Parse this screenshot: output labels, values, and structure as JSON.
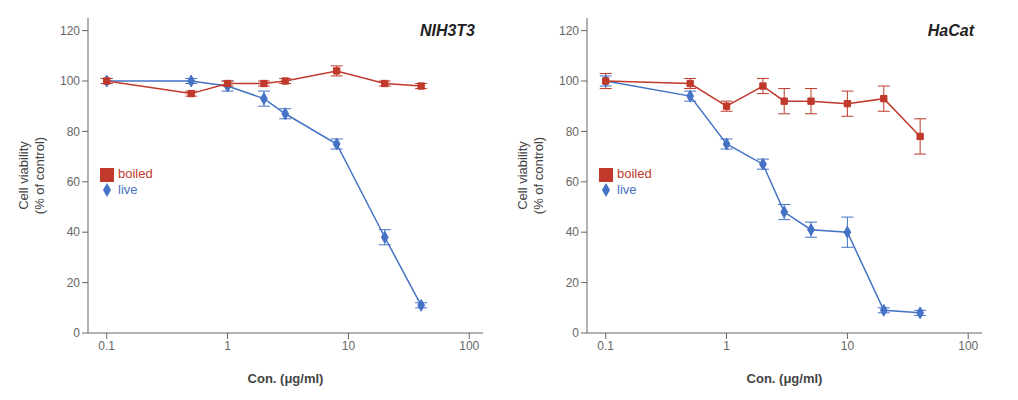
{
  "chart_data": [
    {
      "type": "line",
      "title": "NIH3T3",
      "xlabel": "Con. (μg/ml)",
      "ylabel": "Cell viability\n(% of control)",
      "log": "x",
      "x": [
        0.1,
        0.5,
        1.0,
        2.0,
        3.0,
        8.0,
        20.0,
        40.0
      ],
      "series": [
        {
          "name": "live",
          "color": "#4472C4",
          "marker": "diamond",
          "values": [
            100,
            100,
            98,
            93,
            87,
            75,
            38,
            11
          ],
          "errors": [
            1,
            1,
            2,
            3,
            2,
            2,
            3,
            1
          ]
        },
        {
          "name": "boiled",
          "color": "#C0392B",
          "marker": "square",
          "values": [
            100,
            95,
            99,
            99,
            100,
            104,
            99,
            98
          ],
          "errors": [
            1,
            1,
            1,
            1,
            1,
            2,
            1,
            1
          ]
        }
      ],
      "xlim": [
        0.07,
        130
      ],
      "xticks": [
        0.1,
        1,
        10,
        100
      ],
      "ylim": [
        0,
        125
      ],
      "yticks": [
        0,
        20,
        40,
        60,
        80,
        100,
        120
      ],
      "grid": false,
      "legend": "left"
    },
    {
      "type": "line",
      "title": "HaCat",
      "xlabel": "Con. (μg/ml)",
      "ylabel": "Cell viability\n(% of control)",
      "log": "x",
      "x": [
        0.1,
        0.5,
        1.0,
        2.0,
        3.0,
        5.0,
        10.0,
        20.0,
        40.0
      ],
      "series": [
        {
          "name": "live",
          "color": "#4472C4",
          "marker": "diamond",
          "values": [
            100,
            94,
            75,
            67,
            48,
            41,
            40,
            9,
            8
          ],
          "errors": [
            2,
            2,
            2,
            2,
            3,
            3,
            6,
            1,
            1
          ]
        },
        {
          "name": "boiled",
          "color": "#C0392B",
          "marker": "square",
          "values": [
            100,
            99,
            90,
            98,
            92,
            92,
            91,
            93,
            78
          ],
          "errors": [
            3,
            2,
            2,
            3,
            5,
            5,
            5,
            5,
            7
          ]
        }
      ],
      "xlim": [
        0.07,
        130
      ],
      "xticks": [
        0.1,
        1,
        10,
        100
      ],
      "ylim": [
        0,
        125
      ],
      "yticks": [
        0,
        20,
        40,
        60,
        80,
        100,
        120
      ],
      "grid": false,
      "legend": "left"
    }
  ]
}
